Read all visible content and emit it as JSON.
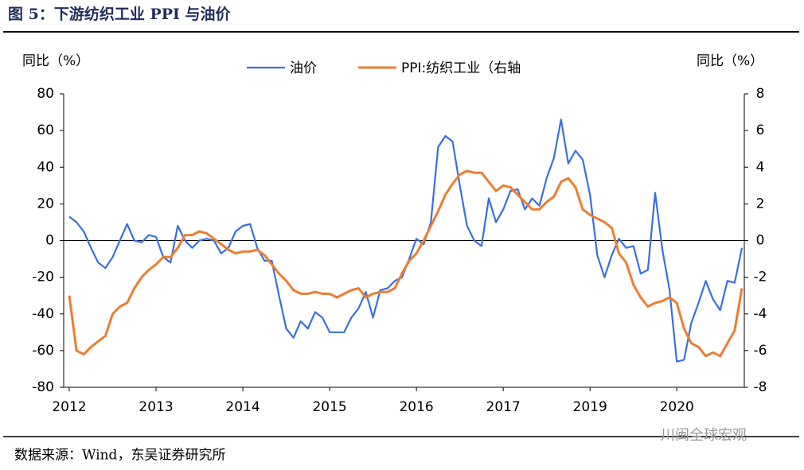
{
  "header": {
    "title": "图 5：下游纺织工业 PPI 与油价"
  },
  "chart_data": {
    "type": "line",
    "ylabel": "同比（%）",
    "y2label": "同比（%）",
    "categories": [
      "2012",
      null,
      null,
      null,
      null,
      null,
      null,
      null,
      null,
      null,
      null,
      null,
      "2013",
      null,
      null,
      null,
      null,
      null,
      null,
      null,
      null,
      null,
      null,
      null,
      "2014",
      null,
      null,
      null,
      null,
      null,
      null,
      null,
      null,
      null,
      null,
      null,
      "2015",
      null,
      null,
      null,
      null,
      null,
      null,
      null,
      null,
      null,
      null,
      null,
      "2016",
      null,
      null,
      null,
      null,
      null,
      null,
      null,
      null,
      null,
      null,
      null,
      "2017",
      null,
      null,
      null,
      null,
      null,
      null,
      null,
      null,
      null,
      null,
      null,
      "2019",
      null,
      null,
      null,
      null,
      null,
      null,
      null,
      null,
      null,
      null,
      null,
      "2020",
      null,
      null,
      null,
      null,
      null,
      null,
      null,
      null,
      null
    ],
    "series": [
      {
        "name": "油价",
        "color": "#3a6fe0",
        "axis": "y",
        "values": [
          13,
          10,
          5,
          -4,
          -12,
          -15,
          -9,
          0,
          9,
          0,
          -1,
          3,
          2,
          -9,
          -12,
          8,
          0,
          -4,
          0,
          1,
          0,
          -7,
          -4,
          5,
          8,
          9,
          -4,
          -11,
          -11,
          -30,
          -48,
          -53,
          -44,
          -48,
          -39,
          -42,
          -50,
          -50,
          -50,
          -42,
          -37,
          -28,
          -42,
          -27,
          -26,
          -22,
          -20,
          -10,
          1,
          -2,
          10,
          51,
          57,
          54,
          30,
          8,
          0,
          -3,
          23,
          10,
          17,
          27,
          28,
          17,
          23,
          19,
          34,
          45,
          66,
          42,
          49,
          44,
          25,
          -8,
          -20,
          -8,
          1,
          -4,
          -3,
          -18,
          -16,
          26,
          -5,
          -27,
          -66,
          -65,
          -45,
          -34,
          -22,
          -32,
          -38,
          -22,
          -23,
          -4
        ]
      },
      {
        "name": "PPI:纺织工业（右轴",
        "color": "#ed7d31",
        "axis": "y2",
        "values": [
          -3,
          -6,
          -6.2,
          -5.8,
          -5.5,
          -5.2,
          -4,
          -3.6,
          -3.4,
          -2.6,
          -2,
          -1.6,
          -1.3,
          -0.9,
          -0.9,
          -0.4,
          0.3,
          0.3,
          0.5,
          0.4,
          0.1,
          -0.2,
          -0.5,
          -0.7,
          -0.6,
          -0.6,
          -0.5,
          -0.8,
          -1.3,
          -1.8,
          -2.2,
          -2.7,
          -2.9,
          -2.9,
          -2.8,
          -2.9,
          -2.9,
          -3.1,
          -2.9,
          -2.7,
          -2.6,
          -3.1,
          -2.9,
          -2.8,
          -2.8,
          -2.6,
          -1.8,
          -1.1,
          -0.7,
          0,
          0.8,
          1.6,
          2.5,
          3.1,
          3.6,
          3.8,
          3.7,
          3.7,
          3.2,
          2.7,
          3.0,
          2.9,
          2.5,
          2.1,
          1.7,
          1.7,
          2.1,
          2.4,
          3.2,
          3.4,
          2.9,
          1.7,
          1.4,
          1.2,
          1.0,
          0.7,
          -0.7,
          -1.2,
          -2.4,
          -3.1,
          -3.6,
          -3.4,
          -3.3,
          -3.1,
          -3.4,
          -4.8,
          -5.6,
          -5.8,
          -6.3,
          -6.1,
          -6.3,
          -5.6,
          -4.9,
          -2.6
        ]
      }
    ],
    "ylim": [
      -80,
      80
    ],
    "yticks": [
      -80,
      -60,
      -40,
      -20,
      0,
      20,
      40,
      60,
      80
    ],
    "y2lim": [
      -8,
      8
    ],
    "y2ticks": [
      -8,
      -6,
      -4,
      -2,
      0,
      2,
      4,
      6,
      8
    ],
    "legend": "top"
  },
  "footer": {
    "source": "数据来源：Wind，东吴证券研究所",
    "watermark": "川闽全球宏观"
  }
}
